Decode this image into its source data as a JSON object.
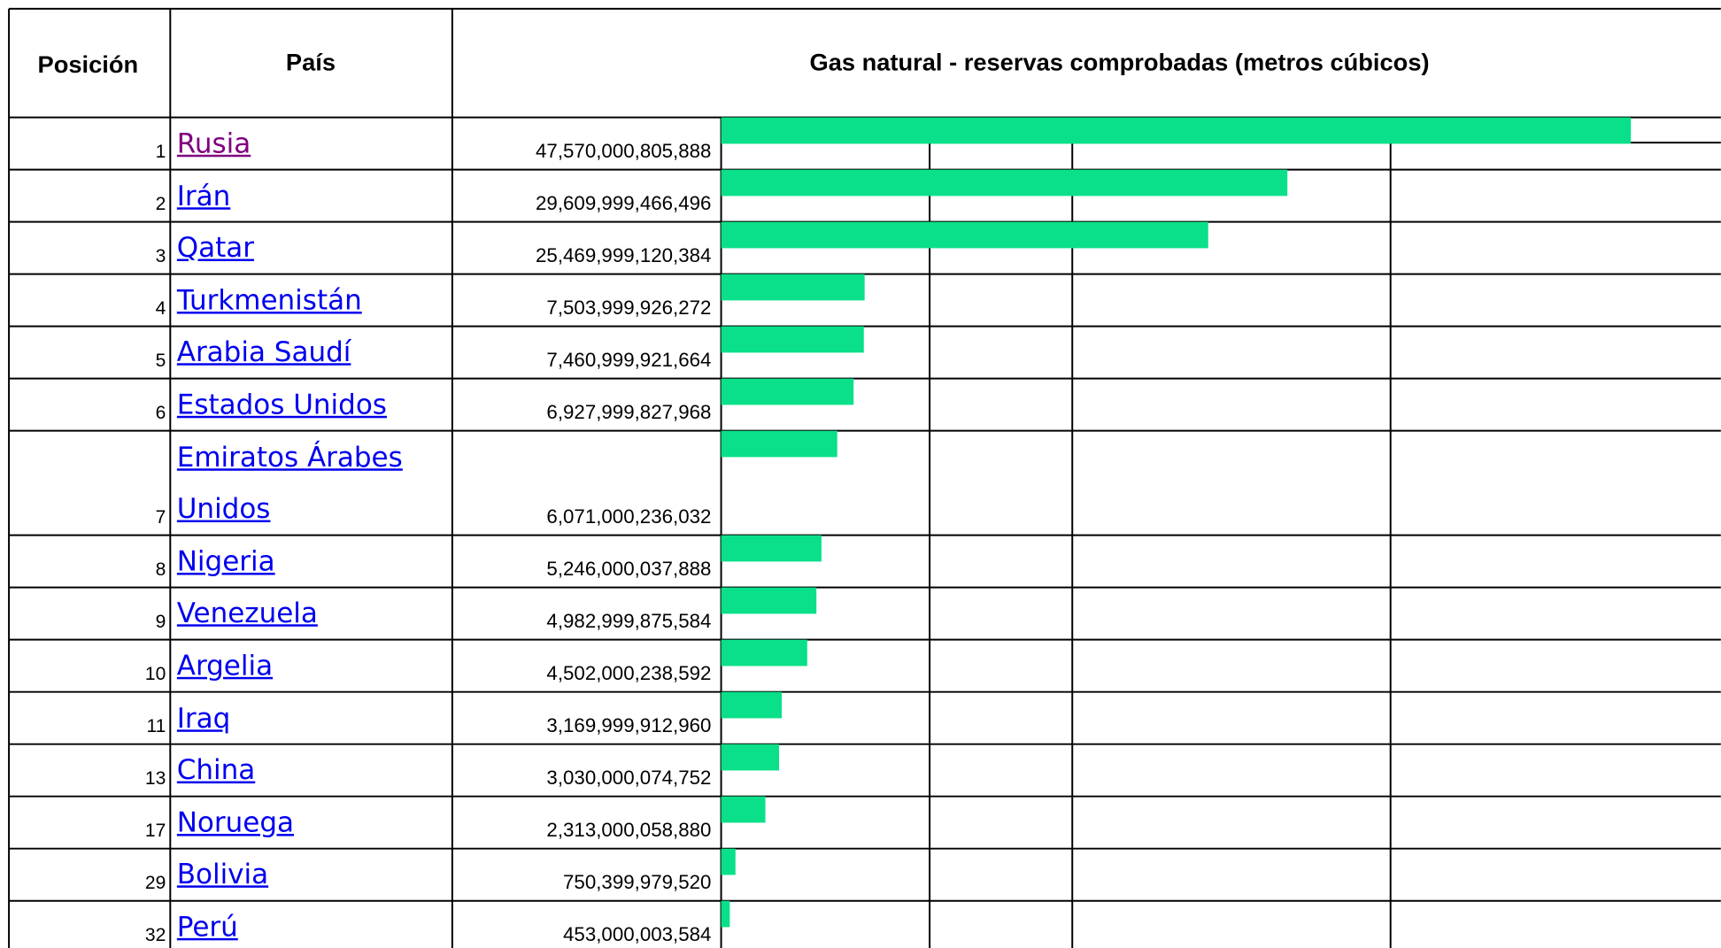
{
  "header": {
    "position": "Posición",
    "country": "País",
    "title": "Gas natural - reservas comprobadas (metros cúbicos)"
  },
  "bar_color": "#0ae089",
  "rows": [
    {
      "position": 1,
      "country": "Rusia",
      "visited": true,
      "reserves": 47570000805888,
      "reserves_label": "47,570,000,805,888"
    },
    {
      "position": 2,
      "country": "Irán",
      "reserves": 29609999466496,
      "reserves_label": "29,609,999,466,496"
    },
    {
      "position": 3,
      "country": "Qatar",
      "reserves": 25469999120384,
      "reserves_label": "25,469,999,120,384"
    },
    {
      "position": 4,
      "country": "Turkmenistán",
      "reserves": 7503999926272,
      "reserves_label": "7,503,999,926,272"
    },
    {
      "position": 5,
      "country": "Arabia Saudí",
      "reserves": 7460999921664,
      "reserves_label": "7,460,999,921,664"
    },
    {
      "position": 6,
      "country": "Estados Unidos",
      "reserves": 6927999827968,
      "reserves_label": "6,927,999,827,968"
    },
    {
      "position": 7,
      "country": "Emiratos Árabes Unidos",
      "reserves": 6071000236032,
      "reserves_label": "6,071,000,236,032"
    },
    {
      "position": 8,
      "country": "Nigeria",
      "reserves": 5246000037888,
      "reserves_label": "5,246,000,037,888"
    },
    {
      "position": 9,
      "country": "Venezuela",
      "reserves": 4982999875584,
      "reserves_label": "4,982,999,875,584"
    },
    {
      "position": 10,
      "country": "Argelia",
      "reserves": 4502000238592,
      "reserves_label": "4,502,000,238,592"
    },
    {
      "position": 11,
      "country": "Iraq",
      "reserves": 3169999912960,
      "reserves_label": "3,169,999,912,960"
    },
    {
      "position": 13,
      "country": "China",
      "reserves": 3030000074752,
      "reserves_label": "3,030,000,074,752"
    },
    {
      "position": 17,
      "country": "Noruega",
      "reserves": 2313000058880,
      "reserves_label": "2,313,000,058,880"
    },
    {
      "position": 29,
      "country": "Bolivia",
      "reserves": 750399979520,
      "reserves_label": "750,399,979,520"
    },
    {
      "position": 32,
      "country": "Perú",
      "reserves": 453000003584,
      "reserves_label": "453,000,003,584"
    }
  ]
}
